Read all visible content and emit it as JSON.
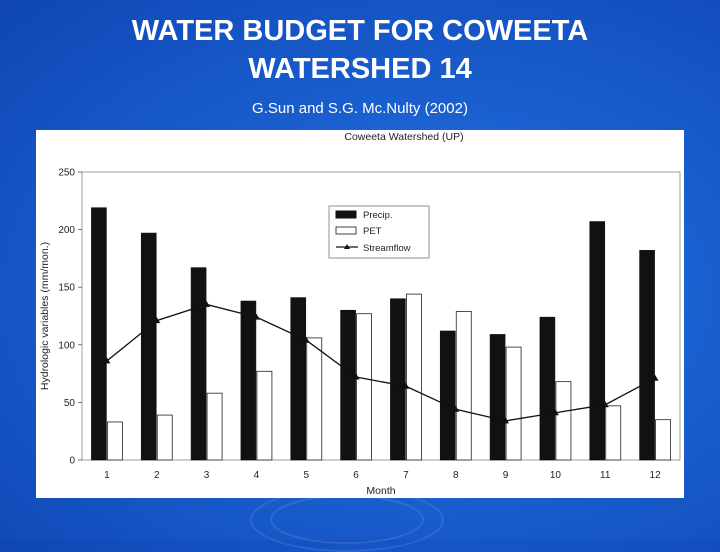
{
  "slide": {
    "title_line1": "WATER BUDGET FOR COWEETA",
    "title_line2": "WATERSHED 14",
    "subtitle": "G.Sun and S.G. Mc.Nulty (2002)"
  },
  "colors": {
    "background": "#1a5fcf",
    "precip": "#111111",
    "pet": "#ffffff",
    "streamflow": "#111111"
  },
  "chart_data": {
    "type": "bar",
    "title": "Coweeta Watershed (UP)",
    "xlabel": "Month",
    "ylabel": "Hydrologic variables (mm/mon.)",
    "ylim": [
      0,
      250
    ],
    "yticks": [
      "0",
      "50",
      "100",
      "150",
      "200",
      "250"
    ],
    "categories": [
      "1",
      "2",
      "3",
      "4",
      "5",
      "6",
      "7",
      "8",
      "9",
      "10",
      "11",
      "12"
    ],
    "series": [
      {
        "name": "Precip.",
        "type": "bar",
        "values": [
          219,
          197,
          167,
          138,
          141,
          130,
          140,
          112,
          109,
          124,
          207,
          182
        ]
      },
      {
        "name": "PET",
        "type": "bar",
        "values": [
          33,
          39,
          58,
          77,
          106,
          127,
          144,
          129,
          98,
          68,
          47,
          35
        ]
      },
      {
        "name": "Streamflow",
        "type": "line",
        "values": [
          86,
          121,
          135,
          124,
          104,
          72,
          64,
          44,
          34,
          41,
          48,
          71
        ]
      }
    ],
    "grid": false,
    "legend": "top-center"
  }
}
